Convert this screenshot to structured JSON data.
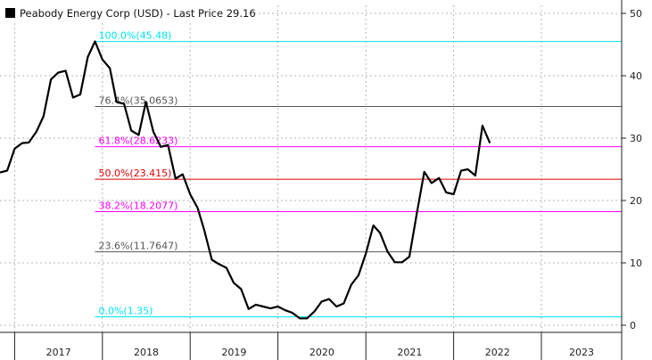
{
  "chart_data": {
    "type": "line",
    "legend": {
      "label": "Peabody Energy Corp (USD) - Last Price 29.16",
      "color": "#000000",
      "placement": "top-left"
    },
    "x_start": "2016-11-01",
    "x_end": "2023-12-01",
    "xticks": [
      "2017",
      "2018",
      "2019",
      "2020",
      "2021",
      "2022",
      "2023"
    ],
    "ylim": [
      0,
      50
    ],
    "yticks": [
      0,
      10,
      20,
      30,
      40,
      50
    ],
    "y_axis_side": "right",
    "grid": true,
    "series": [
      {
        "color": "#000000",
        "points": [
          [
            "2016-11-01",
            24.5
          ],
          [
            "2016-12-01",
            24.8
          ],
          [
            "2017-01-01",
            28.3
          ],
          [
            "2017-02-01",
            29.2
          ],
          [
            "2017-03-01",
            29.3
          ],
          [
            "2017-04-01",
            31.0
          ],
          [
            "2017-05-01",
            33.5
          ],
          [
            "2017-06-01",
            39.4
          ],
          [
            "2017-07-01",
            40.5
          ],
          [
            "2017-08-01",
            40.8
          ],
          [
            "2017-09-01",
            36.5
          ],
          [
            "2017-10-01",
            37.0
          ],
          [
            "2017-11-01",
            43.0
          ],
          [
            "2017-12-01",
            45.5
          ],
          [
            "2018-01-01",
            42.6
          ],
          [
            "2018-02-01",
            41.2
          ],
          [
            "2018-03-01",
            35.8
          ],
          [
            "2018-04-01",
            35.5
          ],
          [
            "2018-05-01",
            31.2
          ],
          [
            "2018-06-01",
            30.5
          ],
          [
            "2018-07-01",
            35.8
          ],
          [
            "2018-08-01",
            31.0
          ],
          [
            "2018-09-01",
            28.6
          ],
          [
            "2018-10-01",
            28.9
          ],
          [
            "2018-11-01",
            23.5
          ],
          [
            "2018-12-01",
            24.2
          ],
          [
            "2019-01-01",
            21.0
          ],
          [
            "2019-02-01",
            18.8
          ],
          [
            "2019-03-01",
            15.2
          ],
          [
            "2019-04-01",
            10.5
          ],
          [
            "2019-05-01",
            9.8
          ],
          [
            "2019-06-01",
            9.2
          ],
          [
            "2019-07-01",
            6.8
          ],
          [
            "2019-08-01",
            5.8
          ],
          [
            "2019-09-01",
            2.6
          ],
          [
            "2019-10-01",
            3.3
          ],
          [
            "2019-11-01",
            3.0
          ],
          [
            "2019-12-01",
            2.7
          ],
          [
            "2020-01-01",
            3.0
          ],
          [
            "2020-02-01",
            2.4
          ],
          [
            "2020-03-01",
            2.0
          ],
          [
            "2020-04-01",
            1.1
          ],
          [
            "2020-05-01",
            1.1
          ],
          [
            "2020-06-01",
            2.2
          ],
          [
            "2020-07-01",
            3.8
          ],
          [
            "2020-08-01",
            4.2
          ],
          [
            "2020-09-01",
            3.0
          ],
          [
            "2020-10-01",
            3.5
          ],
          [
            "2020-11-01",
            6.5
          ],
          [
            "2020-12-01",
            8.0
          ],
          [
            "2021-01-01",
            11.5
          ],
          [
            "2021-02-01",
            16.0
          ],
          [
            "2021-03-01",
            14.8
          ],
          [
            "2021-04-01",
            11.8
          ],
          [
            "2021-05-01",
            10.1
          ],
          [
            "2021-06-01",
            10.1
          ],
          [
            "2021-07-01",
            11.0
          ],
          [
            "2021-08-01",
            18.0
          ],
          [
            "2021-09-01",
            24.6
          ],
          [
            "2021-10-01",
            22.8
          ],
          [
            "2021-11-01",
            23.6
          ],
          [
            "2021-12-01",
            21.3
          ],
          [
            "2022-01-01",
            21.0
          ],
          [
            "2022-02-01",
            24.8
          ],
          [
            "2022-03-01",
            25.0
          ],
          [
            "2022-04-01",
            24.0
          ],
          [
            "2022-05-01",
            32.0
          ],
          [
            "2022-06-01",
            29.2
          ]
        ]
      }
    ],
    "annotations": [
      {
        "label": "100.0%(45.48)",
        "value": 45.48,
        "color": "#00e5ee"
      },
      {
        "label": "76.4%(35.0653)",
        "value": 35.0653,
        "color": "#555555"
      },
      {
        "label": "61.8%(28.6233)",
        "value": 28.6233,
        "color": "#ff00ff"
      },
      {
        "label": "50.0%(23.415)",
        "value": 23.415,
        "color": "#e00000"
      },
      {
        "label": "38.2%(18.2077)",
        "value": 18.2077,
        "color": "#ff00ff"
      },
      {
        "label": "23.6%(11.7647)",
        "value": 11.7647,
        "color": "#555555"
      },
      {
        "label": "0.0%(1.35)",
        "value": 1.35,
        "color": "#00e5ee"
      }
    ]
  }
}
